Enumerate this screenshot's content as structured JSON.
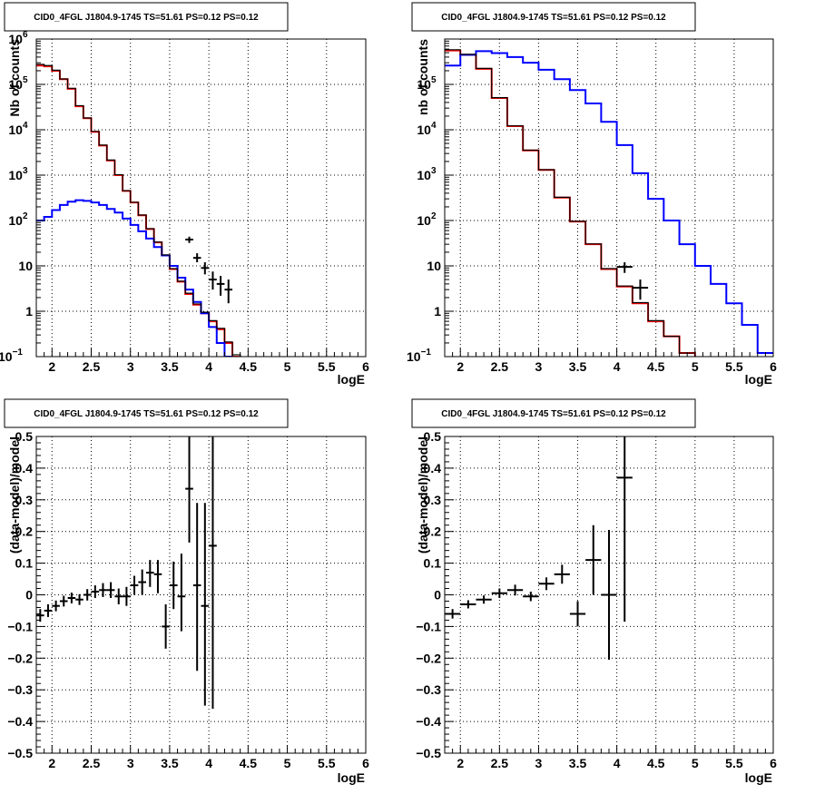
{
  "pads": [
    {
      "id": "pad-top-left",
      "title": "CID0_4FGL J1804.9-1745 TS=51.61 PS=0.12 PS=0.12",
      "xlabel": "logE",
      "ylabel": "Nb of counts",
      "chart_data": {
        "type": "line",
        "x_range": [
          1.8,
          6.0
        ],
        "y_range": [
          0.1,
          1000000
        ],
        "log_y": true,
        "grid": true,
        "x_ticks": [
          {
            "v": 2,
            "label": "2"
          },
          {
            "v": 2.5,
            "label": "2.5"
          },
          {
            "v": 3,
            "label": "3"
          },
          {
            "v": 3.5,
            "label": "3.5"
          },
          {
            "v": 4,
            "label": "4"
          },
          {
            "v": 4.5,
            "label": "4.5"
          },
          {
            "v": 5,
            "label": "5"
          },
          {
            "v": 5.5,
            "label": "5.5"
          },
          {
            "v": 6,
            "label": "6"
          }
        ],
        "y_ticks": [
          {
            "v": 0.1,
            "base": "10",
            "exp": "−1"
          },
          {
            "v": 1,
            "label": "1"
          },
          {
            "v": 10,
            "label": "10"
          },
          {
            "v": 100,
            "base": "10",
            "exp": "2"
          },
          {
            "v": 1000,
            "base": "10",
            "exp": "3"
          },
          {
            "v": 10000,
            "base": "10",
            "exp": "4"
          },
          {
            "v": 100000,
            "base": "10",
            "exp": "5"
          },
          {
            "v": 1000000,
            "base": "10",
            "exp": "6"
          }
        ],
        "bin_edges": [
          1.8,
          1.9,
          2.0,
          2.1,
          2.2,
          2.3,
          2.4,
          2.5,
          2.6,
          2.7,
          2.8,
          2.9,
          3.0,
          3.1,
          3.2,
          3.3,
          3.4,
          3.5,
          3.6,
          3.7,
          3.8,
          3.9,
          4.0,
          4.1,
          4.2,
          4.3,
          4.4,
          4.5,
          4.6,
          4.7,
          4.8,
          4.9,
          5.0,
          5.1,
          5.2,
          5.3,
          5.4,
          5.5,
          5.6,
          5.7,
          5.8,
          5.9,
          6.0
        ],
        "series": [
          {
            "color": "#ff0000",
            "values": [
              260000,
              250000,
              200000,
              130000,
              80000,
              33000,
              18000,
              9000,
              4500,
              2100,
              1000,
              450,
              250,
              130,
              65,
              33,
              17,
              8.5,
              4.5,
              2.4,
              1.4,
              0.9,
              0.6,
              0.4,
              0.2,
              0.1,
              0.05,
              0.05,
              0.05,
              0.05,
              0.05,
              0.05,
              0.05,
              0.05,
              0.05,
              0.05,
              0.05,
              0.05,
              0.05,
              0.05,
              0.05,
              0.05
            ]
          },
          {
            "color": "#0000ff",
            "values": [
              100,
              120,
              170,
              220,
              260,
              280,
              270,
              250,
              220,
              180,
              150,
              110,
              80,
              58,
              40,
              26,
              17,
              10,
              5.5,
              3,
              1.6,
              0.9,
              0.45,
              0.2,
              0.1,
              0.05,
              0.05,
              0.05,
              0.05,
              0.05,
              0.05,
              0.05,
              0.05,
              0.05,
              0.05,
              0.05,
              0.05,
              0.05,
              0.05,
              0.05,
              0.05,
              0.05
            ]
          },
          {
            "color": "#000000",
            "values": [
              275000,
              260000,
              205000,
              132000,
              82000,
              34000,
              18200,
              9200,
              4600,
              2150,
              1020,
              455,
              252,
              132,
              66,
              33.5,
              17.5,
              8.7,
              4.6,
              2.5,
              1.45,
              0.95,
              0.62,
              0.42,
              0.21,
              0.11,
              0.05,
              0.05,
              0.05,
              0.05,
              0.05,
              0.05,
              0.05,
              0.05,
              0.05,
              0.05,
              0.05,
              0.05,
              0.05,
              0.05,
              0.05,
              0.05
            ]
          }
        ],
        "points": [
          {
            "x": 3.75,
            "y": 38,
            "lo": 32,
            "hi": 44,
            "xerr": 0.05
          },
          {
            "x": 3.85,
            "y": 15,
            "lo": 12,
            "hi": 19,
            "xerr": 0.05
          },
          {
            "x": 3.95,
            "y": 9,
            "lo": 6.5,
            "hi": 12,
            "xerr": 0.05
          },
          {
            "x": 4.05,
            "y": 5,
            "lo": 3,
            "hi": 7.5,
            "xerr": 0.05
          },
          {
            "x": 4.15,
            "y": 4,
            "lo": 2.2,
            "hi": 6,
            "xerr": 0.05
          },
          {
            "x": 4.25,
            "y": 3,
            "lo": 1.5,
            "hi": 5,
            "xerr": 0.05
          }
        ]
      }
    },
    {
      "id": "pad-top-right",
      "title": "CID0_4FGL J1804.9-1745 TS=51.61 PS=0.12 PS=0.12",
      "xlabel": "logE",
      "ylabel": "nb of counts",
      "chart_data": {
        "type": "line",
        "x_range": [
          1.8,
          6.0
        ],
        "y_range": [
          0.1,
          1000000
        ],
        "log_y": true,
        "grid": true,
        "x_ticks": [
          {
            "v": 2,
            "label": "2"
          },
          {
            "v": 2.5,
            "label": "2.5"
          },
          {
            "v": 3,
            "label": "3"
          },
          {
            "v": 3.5,
            "label": "3.5"
          },
          {
            "v": 4,
            "label": "4"
          },
          {
            "v": 4.5,
            "label": "4.5"
          },
          {
            "v": 5,
            "label": "5"
          },
          {
            "v": 5.5,
            "label": "5.5"
          },
          {
            "v": 6,
            "label": "6"
          }
        ],
        "y_ticks": [
          {
            "v": 0.1,
            "base": "10",
            "exp": "−1"
          },
          {
            "v": 1,
            "label": "1"
          },
          {
            "v": 10,
            "label": "10"
          },
          {
            "v": 100,
            "base": "10",
            "exp": "2"
          },
          {
            "v": 1000,
            "base": "10",
            "exp": "3"
          },
          {
            "v": 10000,
            "base": "10",
            "exp": "4"
          },
          {
            "v": 100000,
            "base": "10",
            "exp": "5"
          }
        ],
        "bin_edges": [
          1.8,
          2.0,
          2.2,
          2.4,
          2.6,
          2.8,
          3.0,
          3.2,
          3.4,
          3.6,
          3.8,
          4.0,
          4.2,
          4.4,
          4.6,
          4.8,
          5.0,
          5.2,
          5.4,
          5.6,
          5.8,
          6.0
        ],
        "series": [
          {
            "color": "#ff0000",
            "values": [
              560000,
              450000,
              220000,
              50000,
              12000,
              3500,
              1300,
              320,
              95,
              30,
              8.5,
              3.5,
              1.5,
              0.6,
              0.28,
              0.12,
              0.06,
              0.05,
              0.05,
              0.05,
              0.05
            ]
          },
          {
            "color": "#0000ff",
            "values": [
              260000,
              450000,
              540000,
              490000,
              400000,
              300000,
              210000,
              130000,
              75000,
              38000,
              15000,
              4600,
              1100,
              300,
              100,
              30,
              10,
              4,
              1.5,
              0.5,
              0.12
            ]
          },
          {
            "color": "#000000",
            "values": [
              580000,
              460000,
              225000,
              51000,
              12200,
              3550,
              1320,
              325,
              96,
              30.5,
              8.7,
              3.6,
              1.55,
              0.62,
              0.28,
              0.12,
              0.06,
              0.05,
              0.05,
              0.05,
              0.05
            ]
          }
        ],
        "points": [
          {
            "x": 4.1,
            "y": 9.5,
            "lo": 7,
            "hi": 12,
            "xerr": 0.1
          },
          {
            "x": 4.3,
            "y": 3.3,
            "lo": 1.8,
            "hi": 5,
            "xerr": 0.1
          }
        ]
      }
    },
    {
      "id": "pad-bottom-left",
      "title": "CID0_4FGL J1804.9-1745 TS=51.61 PS=0.12 PS=0.12",
      "xlabel": "logE",
      "ylabel": "(data-model)/model",
      "chart_data": {
        "type": "scatter",
        "x_range": [
          1.8,
          6.0
        ],
        "y_range": [
          -0.5,
          0.5
        ],
        "log_y": false,
        "grid": true,
        "x_ticks": [
          {
            "v": 2,
            "label": "2"
          },
          {
            "v": 2.5,
            "label": "2.5"
          },
          {
            "v": 3,
            "label": "3"
          },
          {
            "v": 3.5,
            "label": "3.5"
          },
          {
            "v": 4,
            "label": "4"
          },
          {
            "v": 4.5,
            "label": "4.5"
          },
          {
            "v": 5,
            "label": "5"
          },
          {
            "v": 5.5,
            "label": "5.5"
          },
          {
            "v": 6,
            "label": "6"
          }
        ],
        "y_ticks": [
          {
            "v": -0.5,
            "label": "−0.5"
          },
          {
            "v": -0.4,
            "label": "−0.4"
          },
          {
            "v": -0.3,
            "label": "−0.3"
          },
          {
            "v": -0.2,
            "label": "−0.2"
          },
          {
            "v": -0.1,
            "label": "−0.1"
          },
          {
            "v": 0,
            "label": "0"
          },
          {
            "v": 0.1,
            "label": "0.1"
          },
          {
            "v": 0.2,
            "label": "0.2"
          },
          {
            "v": 0.3,
            "label": "0.3"
          },
          {
            "v": 0.4,
            "label": "0.4"
          },
          {
            "v": 0.5,
            "label": "0.5"
          }
        ],
        "series": [],
        "points": [
          {
            "x": 1.85,
            "y": -0.065,
            "lo": -0.085,
            "hi": -0.045,
            "xerr": 0.05
          },
          {
            "x": 1.95,
            "y": -0.05,
            "lo": -0.07,
            "hi": -0.03,
            "xerr": 0.05
          },
          {
            "x": 2.05,
            "y": -0.035,
            "lo": -0.052,
            "hi": -0.018,
            "xerr": 0.05
          },
          {
            "x": 2.15,
            "y": -0.02,
            "lo": -0.037,
            "hi": -0.003,
            "xerr": 0.05
          },
          {
            "x": 2.25,
            "y": -0.01,
            "lo": -0.027,
            "hi": 0.007,
            "xerr": 0.05
          },
          {
            "x": 2.35,
            "y": -0.015,
            "lo": -0.032,
            "hi": 0.002,
            "xerr": 0.05
          },
          {
            "x": 2.45,
            "y": 0,
            "lo": -0.018,
            "hi": 0.018,
            "xerr": 0.05
          },
          {
            "x": 2.55,
            "y": 0.01,
            "lo": -0.01,
            "hi": 0.03,
            "xerr": 0.05
          },
          {
            "x": 2.65,
            "y": 0.015,
            "lo": -0.007,
            "hi": 0.037,
            "xerr": 0.05
          },
          {
            "x": 2.75,
            "y": 0.015,
            "lo": -0.01,
            "hi": 0.04,
            "xerr": 0.05
          },
          {
            "x": 2.85,
            "y": -0.005,
            "lo": -0.03,
            "hi": 0.02,
            "xerr": 0.05
          },
          {
            "x": 2.95,
            "y": -0.005,
            "lo": -0.035,
            "hi": 0.025,
            "xerr": 0.05
          },
          {
            "x": 3.05,
            "y": 0.03,
            "lo": 0.0,
            "hi": 0.06,
            "xerr": 0.05
          },
          {
            "x": 3.15,
            "y": 0.04,
            "lo": 0.0,
            "hi": 0.08,
            "xerr": 0.05
          },
          {
            "x": 3.25,
            "y": 0.07,
            "lo": 0.025,
            "hi": 0.11,
            "xerr": 0.05
          },
          {
            "x": 3.35,
            "y": 0.065,
            "lo": 0.005,
            "hi": 0.11,
            "xerr": 0.05
          },
          {
            "x": 3.45,
            "y": -0.1,
            "lo": -0.17,
            "hi": -0.03,
            "xerr": 0.05
          },
          {
            "x": 3.55,
            "y": 0.03,
            "lo": -0.045,
            "hi": 0.105,
            "xerr": 0.05
          },
          {
            "x": 3.65,
            "y": -0.005,
            "lo": -0.115,
            "hi": 0.13,
            "xerr": 0.05
          },
          {
            "x": 3.75,
            "y": 0.335,
            "lo": 0.165,
            "hi": 0.5,
            "xerr": 0.05
          },
          {
            "x": 3.85,
            "y": 0.03,
            "lo": -0.24,
            "hi": 0.29,
            "xerr": 0.05
          },
          {
            "x": 3.95,
            "y": -0.035,
            "lo": -0.35,
            "hi": 0.29,
            "xerr": 0.05
          },
          {
            "x": 4.05,
            "y": 0.155,
            "lo": -0.36,
            "hi": 0.5,
            "xerr": 0.05
          }
        ]
      }
    },
    {
      "id": "pad-bottom-right",
      "title": "CID0_4FGL J1804.9-1745 TS=51.61 PS=0.12 PS=0.12",
      "xlabel": "logE",
      "ylabel": "(data-model)/model",
      "chart_data": {
        "type": "scatter",
        "x_range": [
          1.8,
          6.0
        ],
        "y_range": [
          -0.5,
          0.5
        ],
        "log_y": false,
        "grid": true,
        "x_ticks": [
          {
            "v": 2,
            "label": "2"
          },
          {
            "v": 2.5,
            "label": "2.5"
          },
          {
            "v": 3,
            "label": "3"
          },
          {
            "v": 3.5,
            "label": "3.5"
          },
          {
            "v": 4,
            "label": "4"
          },
          {
            "v": 4.5,
            "label": "4.5"
          },
          {
            "v": 5,
            "label": "5"
          },
          {
            "v": 5.5,
            "label": "5.5"
          },
          {
            "v": 6,
            "label": "6"
          }
        ],
        "y_ticks": [
          {
            "v": -0.5,
            "label": "−0.5"
          },
          {
            "v": -0.4,
            "label": "−0.4"
          },
          {
            "v": -0.3,
            "label": "−0.3"
          },
          {
            "v": -0.2,
            "label": "−0.2"
          },
          {
            "v": -0.1,
            "label": "−0.1"
          },
          {
            "v": 0,
            "label": "0"
          },
          {
            "v": 0.1,
            "label": "0.1"
          },
          {
            "v": 0.2,
            "label": "0.2"
          },
          {
            "v": 0.3,
            "label": "0.3"
          },
          {
            "v": 0.4,
            "label": "0.4"
          },
          {
            "v": 0.5,
            "label": "0.5"
          }
        ],
        "series": [],
        "points": [
          {
            "x": 1.9,
            "y": -0.06,
            "lo": -0.075,
            "hi": -0.045,
            "xerr": 0.1
          },
          {
            "x": 2.1,
            "y": -0.03,
            "lo": -0.043,
            "hi": -0.017,
            "xerr": 0.1
          },
          {
            "x": 2.3,
            "y": -0.015,
            "lo": -0.028,
            "hi": -0.002,
            "xerr": 0.1
          },
          {
            "x": 2.5,
            "y": 0.005,
            "lo": -0.01,
            "hi": 0.02,
            "xerr": 0.1
          },
          {
            "x": 2.7,
            "y": 0.015,
            "lo": -0.002,
            "hi": 0.032,
            "xerr": 0.1
          },
          {
            "x": 2.9,
            "y": -0.005,
            "lo": -0.02,
            "hi": 0.01,
            "xerr": 0.1
          },
          {
            "x": 3.1,
            "y": 0.035,
            "lo": 0.015,
            "hi": 0.055,
            "xerr": 0.1
          },
          {
            "x": 3.3,
            "y": 0.065,
            "lo": 0.035,
            "hi": 0.095,
            "xerr": 0.1
          },
          {
            "x": 3.5,
            "y": -0.06,
            "lo": -0.1,
            "hi": -0.02,
            "xerr": 0.1
          },
          {
            "x": 3.7,
            "y": 0.11,
            "lo": 0.0,
            "hi": 0.22,
            "xerr": 0.1
          },
          {
            "x": 3.9,
            "y": 0.0,
            "lo": -0.205,
            "hi": 0.205,
            "xerr": 0.1
          },
          {
            "x": 4.1,
            "y": 0.37,
            "lo": -0.085,
            "hi": 0.5,
            "xerr": 0.1
          }
        ]
      }
    }
  ]
}
